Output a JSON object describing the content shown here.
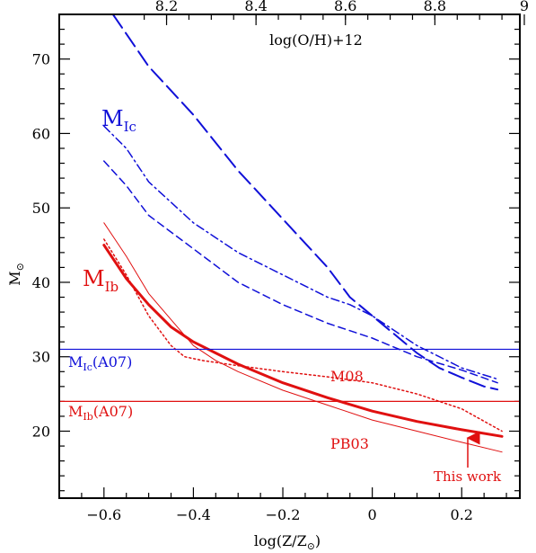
{
  "chart_data": {
    "type": "line",
    "xlabel_main": "log(Z/Z",
    "xlabel_sub": "⊙",
    "xlabel_tail": ")",
    "ylabel_main": "M",
    "ylabel_sub": "⊙",
    "top_axis_label": "log(O/H)+12",
    "xlim": [
      -0.7,
      0.33
    ],
    "ylim": [
      11,
      76
    ],
    "x_ticks": [
      -0.6,
      -0.4,
      -0.2,
      0,
      0.2
    ],
    "x_tick_labels": [
      "−0.6",
      "−0.4",
      "−0.2",
      "0",
      "0.2"
    ],
    "y_ticks": [
      20,
      30,
      40,
      50,
      60,
      70
    ],
    "y_tick_labels": [
      "20",
      "30",
      "40",
      "50",
      "60",
      "70"
    ],
    "top_ticks": [
      -0.46,
      -0.26,
      -0.06,
      0.14,
      0.34
    ],
    "top_tick_labels": [
      "8.2",
      "8.4",
      "8.6",
      "8.8",
      "9"
    ],
    "colors": {
      "blue": "#1010d8",
      "red": "#e01010"
    },
    "series": [
      {
        "color": "blue",
        "style": "longdash",
        "width": 2,
        "x": [
          -0.58,
          -0.5,
          -0.4,
          -0.3,
          -0.2,
          -0.1,
          -0.05,
          0,
          0.05,
          0.1,
          0.15,
          0.2,
          0.25,
          0.28
        ],
        "y": [
          76,
          69,
          62.5,
          55,
          48.5,
          42,
          38,
          35.5,
          33,
          30.5,
          28.5,
          27.2,
          26,
          25.6
        ]
      },
      {
        "color": "blue",
        "style": "dashdot",
        "width": 1.5,
        "x": [
          -0.6,
          -0.55,
          -0.5,
          -0.4,
          -0.3,
          -0.2,
          -0.1,
          -0.05,
          0,
          0.1,
          0.2,
          0.28
        ],
        "y": [
          61,
          58,
          53.5,
          48,
          44,
          41,
          38,
          37,
          35.5,
          31.5,
          28.5,
          27
        ]
      },
      {
        "color": "blue",
        "style": "dashed",
        "width": 1.5,
        "x": [
          -0.6,
          -0.55,
          -0.5,
          -0.4,
          -0.3,
          -0.2,
          -0.1,
          0,
          0.1,
          0.2,
          0.28
        ],
        "y": [
          56.3,
          53,
          49,
          44.5,
          40,
          37,
          34.5,
          32.5,
          30,
          28.2,
          26.5
        ]
      },
      {
        "color": "red",
        "style": "solid",
        "width": 3,
        "x": [
          -0.6,
          -0.55,
          -0.5,
          -0.45,
          -0.4,
          -0.35,
          -0.3,
          -0.2,
          -0.1,
          0,
          0.1,
          0.2,
          0.29
        ],
        "y": [
          45,
          40.5,
          37,
          34,
          32,
          30.5,
          29,
          26.5,
          24.5,
          22.7,
          21.3,
          20.2,
          19.3
        ]
      },
      {
        "color": "red",
        "style": "solid",
        "width": 1,
        "x": [
          -0.6,
          -0.55,
          -0.5,
          -0.45,
          -0.4,
          -0.35,
          -0.3,
          -0.2,
          -0.1,
          0,
          0.1,
          0.2,
          0.29
        ],
        "y": [
          48,
          43.5,
          38.5,
          35,
          31.5,
          29.5,
          28,
          25.5,
          23.5,
          21.5,
          20,
          18.5,
          17.2
        ]
      },
      {
        "color": "red",
        "style": "dotted",
        "width": 1.5,
        "x": [
          -0.6,
          -0.55,
          -0.5,
          -0.45,
          -0.42,
          -0.38,
          -0.3,
          -0.2,
          -0.1,
          0,
          0.1,
          0.2,
          0.29
        ],
        "y": [
          45.8,
          41,
          35.5,
          31.5,
          30,
          29.5,
          28.8,
          28,
          27.3,
          26.5,
          25,
          23,
          20
        ]
      }
    ],
    "hlines": [
      {
        "y": 31,
        "color": "blue"
      },
      {
        "y": 24,
        "color": "red"
      }
    ],
    "annotations": {
      "mic_big": {
        "main": "M",
        "sub": "Ic"
      },
      "mib_big": {
        "main": "M",
        "sub": "Ib"
      },
      "mic_a07": {
        "main": "M",
        "sub": "Ic",
        "tail": "(A07)"
      },
      "mib_a07": {
        "main": "M",
        "sub": "Ib",
        "tail": "(A07)"
      },
      "m08": "M08",
      "pb03": "PB03",
      "this_work": "This work"
    }
  }
}
